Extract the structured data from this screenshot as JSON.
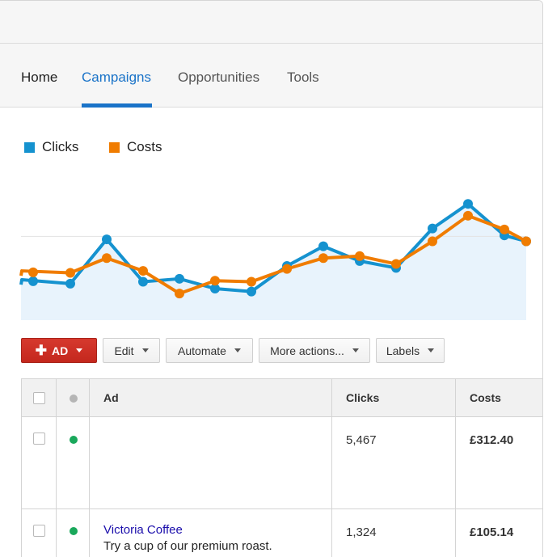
{
  "nav": {
    "tabs": [
      {
        "label": "Home"
      },
      {
        "label": "Campaigns",
        "active": true
      },
      {
        "label": "Opportunities"
      },
      {
        "label": "Tools"
      }
    ]
  },
  "legend": {
    "clicks": {
      "label": "Clicks",
      "color": "#1592cf"
    },
    "costs": {
      "label": "Costs",
      "color": "#f07c00"
    }
  },
  "chart_data": {
    "type": "line",
    "x": [
      1,
      2,
      3,
      4,
      5,
      6,
      7,
      8,
      9,
      10,
      11,
      12,
      13,
      14,
      15,
      16
    ],
    "series": [
      {
        "name": "Clicks",
        "color": "#1592cf",
        "values": [
          41,
          37,
          82,
          39,
          42,
          32,
          29,
          55,
          75,
          60,
          53,
          93,
          118,
          86,
          80,
          80
        ]
      },
      {
        "name": "Costs",
        "color": "#f07c00",
        "values": [
          50,
          48,
          63,
          50,
          27,
          40,
          39,
          52,
          63,
          65,
          57,
          80,
          106,
          92,
          80,
          80
        ]
      }
    ],
    "area_series": "Clicks",
    "ylim": [
      0,
      160
    ],
    "gridline_at": 85,
    "grid": false
  },
  "toolbar": {
    "add_label": "AD",
    "add_icon": "plus-icon",
    "edit_label": "Edit",
    "automate_label": "Automate",
    "more_label": "More actions...",
    "labels_label": "Labels"
  },
  "table": {
    "headers": {
      "ad": "Ad",
      "clicks": "Clicks",
      "costs": "Costs"
    },
    "status_colors": {
      "header": "#b5b5b5",
      "active": "#19a85b"
    },
    "rows": [
      {
        "title": "",
        "description": "",
        "clicks": "5,467",
        "costs": "£312.40"
      },
      {
        "title": "Victoria Coffee",
        "description": "Try a cup of our premium roast.",
        "clicks": "1,324",
        "costs": "£105.14"
      }
    ]
  }
}
